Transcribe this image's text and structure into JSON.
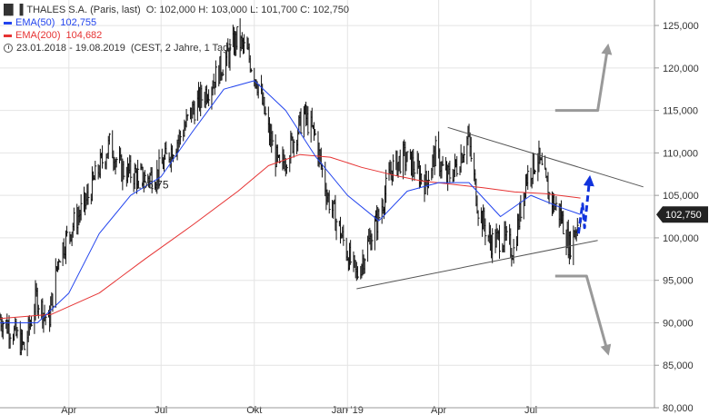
{
  "legend": {
    "instrument": "THALES S.A. (Paris, last)",
    "ohlc": "O: 102,000  H: 103,000  L: 101,700  C: 102,750",
    "ema50_label": "EMA(50)",
    "ema50_value": "102,755",
    "ema200_label": "EMA(200)",
    "ema200_value": "104,682",
    "range": "23.01.2018 - 19.08.2019",
    "range_note": "(CEST, 2 Jahre, 1 Tag)"
  },
  "colors": {
    "price": "#111111",
    "ema50": "#2244ee",
    "ema200": "#e63333",
    "trendline": "#555555",
    "arrow_gray": "#999999",
    "arrow_blue": "#1133dd",
    "last_price_box": "#222222"
  },
  "icons": [
    "bar-chart-icon",
    "clock-icon"
  ],
  "annotations": {
    "local_high_label": "106,75",
    "last_price_label": "102,750"
  },
  "chart_data": {
    "type": "line",
    "title": "THALES S.A. (Paris, last)",
    "xlabel": "",
    "ylabel": "",
    "ylim": [
      80000,
      128000
    ],
    "y_ticks": [
      80000,
      85000,
      90000,
      95000,
      100000,
      105000,
      110000,
      115000,
      120000,
      125000
    ],
    "y_tick_labels": [
      "80,000",
      "85,000",
      "90,000",
      "95,000",
      "100,000",
      "105,000",
      "110,000",
      "115,000",
      "120,000",
      "125,000"
    ],
    "x_tick_labels": [
      "Apr",
      "Jul",
      "Okt",
      "Jan '19",
      "Apr",
      "Jul"
    ],
    "x_tick_dates": [
      "2018-04-01",
      "2018-07-01",
      "2018-10-01",
      "2019-01-01",
      "2019-04-01",
      "2019-07-01"
    ],
    "x_range": [
      "2018-01-23",
      "2019-10-31"
    ],
    "grid": true,
    "legend_position": "top-left",
    "series": [
      {
        "name": "THALES S.A. (Paris, last)",
        "dates": [
          "2018-01-23",
          "2018-02-05",
          "2018-02-16",
          "2018-02-28",
          "2018-03-12",
          "2018-03-22",
          "2018-04-05",
          "2018-04-17",
          "2018-04-30",
          "2018-05-11",
          "2018-05-23",
          "2018-06-04",
          "2018-06-15",
          "2018-06-27",
          "2018-07-09",
          "2018-07-20",
          "2018-08-01",
          "2018-08-13",
          "2018-08-24",
          "2018-09-05",
          "2018-09-14",
          "2018-09-25",
          "2018-10-05",
          "2018-10-16",
          "2018-10-26",
          "2018-11-07",
          "2018-11-19",
          "2018-11-30",
          "2018-12-12",
          "2018-12-21",
          "2019-01-03",
          "2019-01-10",
          "2019-01-22",
          "2019-02-01",
          "2019-02-13",
          "2019-02-25",
          "2019-03-07",
          "2019-03-19",
          "2019-03-29",
          "2019-04-09",
          "2019-04-19",
          "2019-04-30",
          "2019-05-10",
          "2019-05-22",
          "2019-06-03",
          "2019-06-14",
          "2019-06-26",
          "2019-07-08",
          "2019-07-19",
          "2019-07-31",
          "2019-08-08",
          "2019-08-19"
        ],
        "values": [
          90500,
          89000,
          87000,
          93000,
          90000,
          98000,
          101500,
          104000,
          108000,
          111000,
          108000,
          107500,
          107000,
          107500,
          110000,
          112000,
          115000,
          117000,
          119000,
          121500,
          123500,
          121500,
          118000,
          112000,
          108000,
          111000,
          114500,
          112000,
          105000,
          102000,
          97500,
          95500,
          99500,
          102500,
          108000,
          109500,
          108500,
          106500,
          110000,
          107000,
          108500,
          112000,
          103500,
          99500,
          100000,
          98500,
          107000,
          109500,
          105000,
          102500,
          99000,
          102750
        ]
      },
      {
        "name": "EMA(50)",
        "dates": [
          "2018-01-23",
          "2018-03-01",
          "2018-04-01",
          "2018-05-01",
          "2018-06-01",
          "2018-07-01",
          "2018-08-01",
          "2018-09-01",
          "2018-10-01",
          "2018-11-01",
          "2018-12-01",
          "2019-01-01",
          "2019-02-01",
          "2019-03-01",
          "2019-04-01",
          "2019-05-01",
          "2019-06-01",
          "2019-07-01",
          "2019-08-01",
          "2019-08-19"
        ],
        "values": [
          90000,
          90000,
          93500,
          100500,
          105000,
          107200,
          112500,
          117500,
          118500,
          115000,
          109500,
          105000,
          102000,
          105500,
          106500,
          106500,
          102500,
          105000,
          103500,
          102755
        ]
      },
      {
        "name": "EMA(200)",
        "dates": [
          "2018-01-23",
          "2018-03-15",
          "2018-05-01",
          "2018-06-15",
          "2018-08-01",
          "2018-09-15",
          "2018-10-15",
          "2018-11-15",
          "2018-12-15",
          "2019-01-15",
          "2019-02-15",
          "2019-03-15",
          "2019-04-15",
          "2019-05-15",
          "2019-06-15",
          "2019-07-15",
          "2019-08-19"
        ],
        "values": [
          90500,
          91000,
          93500,
          97500,
          101500,
          105500,
          108500,
          109800,
          109500,
          108300,
          107400,
          106700,
          106300,
          105900,
          105400,
          105200,
          104682
        ]
      }
    ],
    "trendlines": [
      {
        "name": "upper-resistance",
        "start": [
          "2019-04-10",
          113000
        ],
        "end": [
          "2019-10-20",
          106000
        ]
      },
      {
        "name": "lower-support",
        "start": [
          "2019-01-10",
          94000
        ],
        "end": [
          "2019-09-05",
          99700
        ]
      }
    ],
    "scenario_arrows": [
      {
        "name": "bullish-scenario",
        "color": "gray",
        "points": [
          [
            "2019-07-25",
            115000
          ],
          [
            "2019-09-05",
            115000
          ],
          [
            "2019-09-15",
            122500
          ]
        ]
      },
      {
        "name": "bearish-scenario",
        "color": "gray",
        "points": [
          [
            "2019-07-25",
            95500
          ],
          [
            "2019-08-25",
            95500
          ],
          [
            "2019-09-15",
            86500
          ]
        ]
      },
      {
        "name": "breakout-scenario",
        "color": "blue",
        "points": [
          [
            "2019-08-17",
            100500
          ],
          [
            "2019-08-21",
            104000
          ],
          [
            "2019-08-23",
            101200
          ],
          [
            "2019-08-28",
            107000
          ]
        ]
      }
    ]
  }
}
